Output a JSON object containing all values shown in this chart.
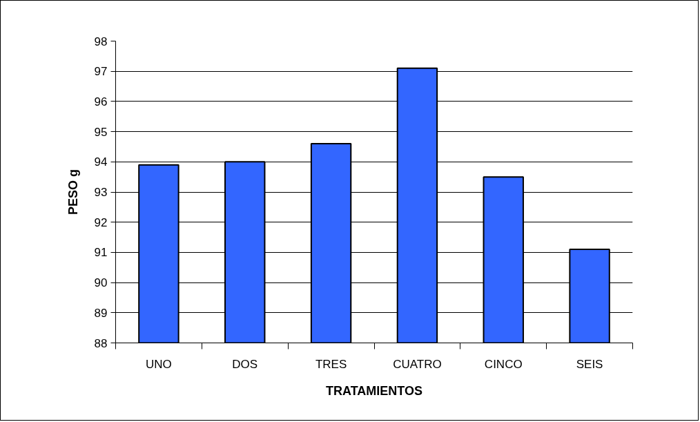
{
  "chart_data": {
    "type": "bar",
    "xlabel": "TRATAMIENTOS",
    "ylabel": "PESO g",
    "categories": [
      "UNO",
      "DOS",
      "TRES",
      "CUATRO",
      "CINCO",
      "SEIS"
    ],
    "values": [
      93.9,
      94.0,
      94.6,
      97.1,
      93.5,
      91.1
    ],
    "color": "#3366ff",
    "ylim": [
      88,
      98
    ],
    "yticks": [
      88,
      89,
      90,
      91,
      92,
      93,
      94,
      95,
      96,
      97,
      98
    ],
    "grid": "y"
  }
}
